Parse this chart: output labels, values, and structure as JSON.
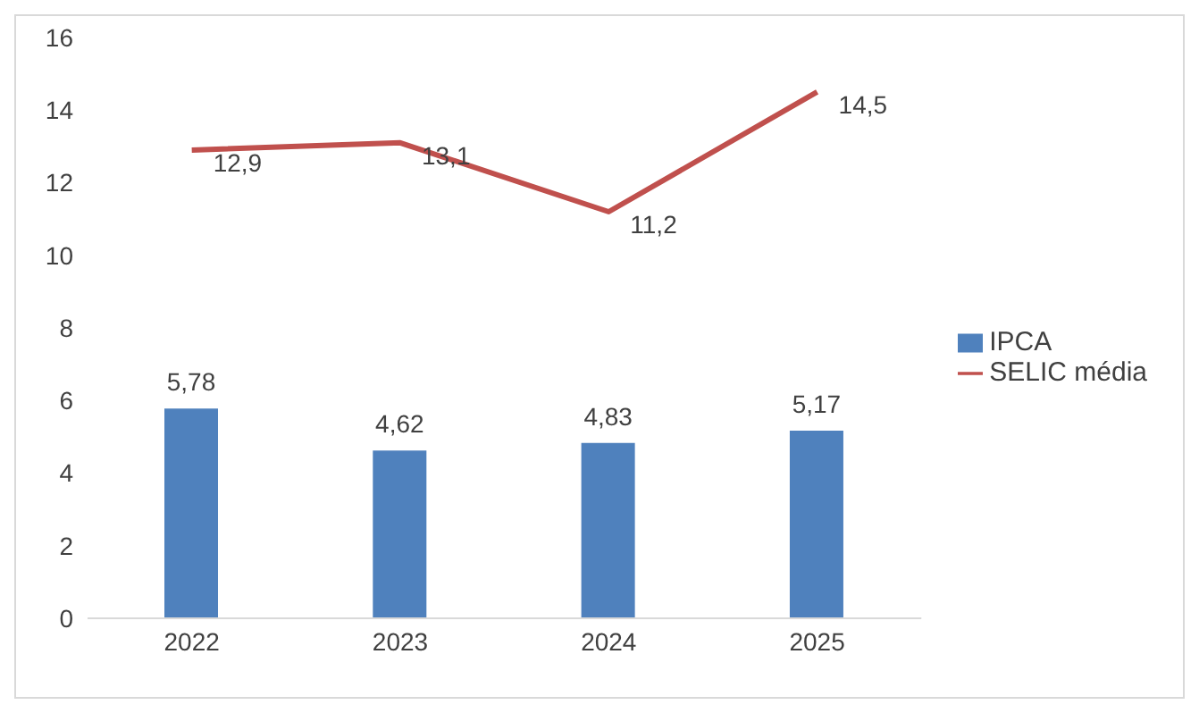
{
  "chart_data": {
    "type": "bar",
    "categories": [
      "2022",
      "2023",
      "2024",
      "2025"
    ],
    "series": [
      {
        "name": "IPCA",
        "color": "#4f81bd",
        "values": [
          5.78,
          4.62,
          4.83,
          5.17
        ],
        "value_labels": [
          "5,78",
          "4,62",
          "4,83",
          "5,17"
        ]
      },
      {
        "name": "SELIC média",
        "type": "line",
        "color": "#c0504d",
        "values": [
          12.9,
          13.1,
          11.2,
          14.5
        ],
        "value_labels": [
          "12,9",
          "13,1",
          "11,2",
          "14,5"
        ]
      }
    ],
    "ylim": [
      0,
      16
    ],
    "yticks": [
      0,
      2,
      4,
      6,
      8,
      10,
      12,
      14,
      16
    ],
    "grid": false,
    "legend": "right",
    "marker": "none",
    "line_style": "solid"
  }
}
